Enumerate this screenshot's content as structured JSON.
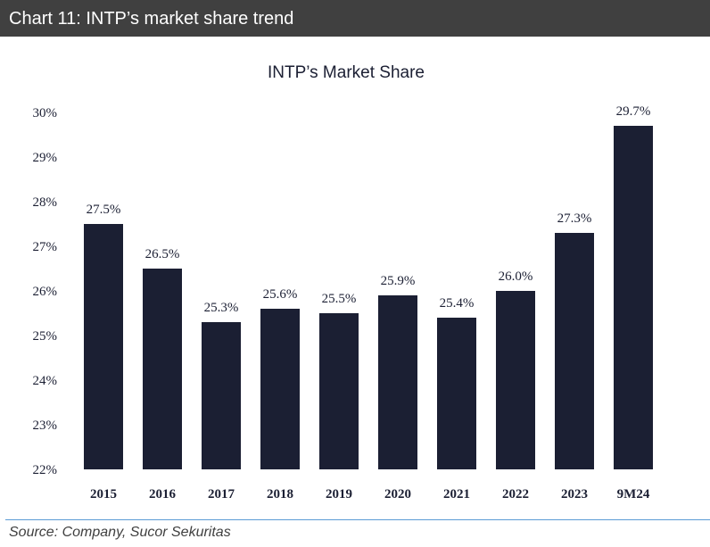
{
  "header": {
    "title": "Chart 11:  INTP’s market share trend"
  },
  "chart_data": {
    "type": "bar",
    "title": "INTP’s Market Share",
    "xlabel": "",
    "ylabel": "",
    "categories": [
      "2015",
      "2016",
      "2017",
      "2018",
      "2019",
      "2020",
      "2021",
      "2022",
      "2023",
      "9M24"
    ],
    "values": [
      27.5,
      26.5,
      25.3,
      25.6,
      25.5,
      25.9,
      25.4,
      26.0,
      27.3,
      29.7
    ],
    "data_labels": [
      "27.5%",
      "26.5%",
      "25.3%",
      "25.6%",
      "25.5%",
      "25.9%",
      "25.4%",
      "26.0%",
      "27.3%",
      "29.7%"
    ],
    "ylim": [
      22,
      30
    ],
    "yticks": [
      22,
      23,
      24,
      25,
      26,
      27,
      28,
      29,
      30
    ],
    "ytick_labels": [
      "22%",
      "23%",
      "24%",
      "25%",
      "26%",
      "27%",
      "28%",
      "29%",
      "30%"
    ],
    "bar_color": "#1b1f33",
    "grid": false,
    "legend": "none"
  },
  "footer": {
    "source": "Source: Company, Sucor Sekuritas"
  },
  "colors": {
    "header_bg": "#404040",
    "rule": "#5b9bd5",
    "bar": "#1b1f33"
  }
}
